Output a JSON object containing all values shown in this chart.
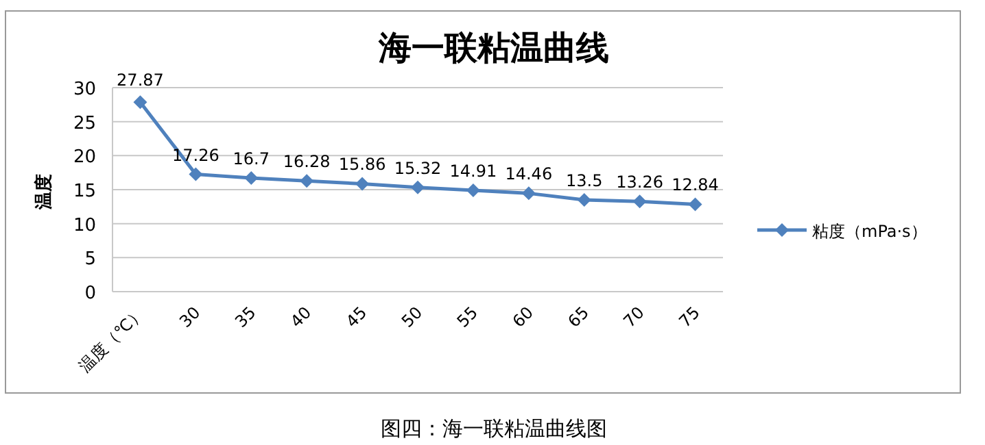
{
  "chart_data": {
    "type": "line",
    "title": "海一联粘温曲线",
    "ylabel": "温度",
    "categories": [
      "温度（℃）",
      "30",
      "35",
      "40",
      "45",
      "50",
      "55",
      "60",
      "65",
      "70",
      "75"
    ],
    "series": [
      {
        "name": "粘度（mPa·s）",
        "color": "#4f81bd",
        "values": [
          27.87,
          17.26,
          16.7,
          16.28,
          15.86,
          15.32,
          14.91,
          14.46,
          13.5,
          13.26,
          12.84
        ]
      }
    ],
    "ylim": [
      0,
      30
    ],
    "yticks": [
      0,
      5,
      10,
      15,
      20,
      25,
      30
    ],
    "grid": "y",
    "legend": "right",
    "marker": "diamond",
    "line_style": "solid",
    "data_labels": true,
    "annotations": [
      "图四：海一联粘温曲线图"
    ]
  }
}
